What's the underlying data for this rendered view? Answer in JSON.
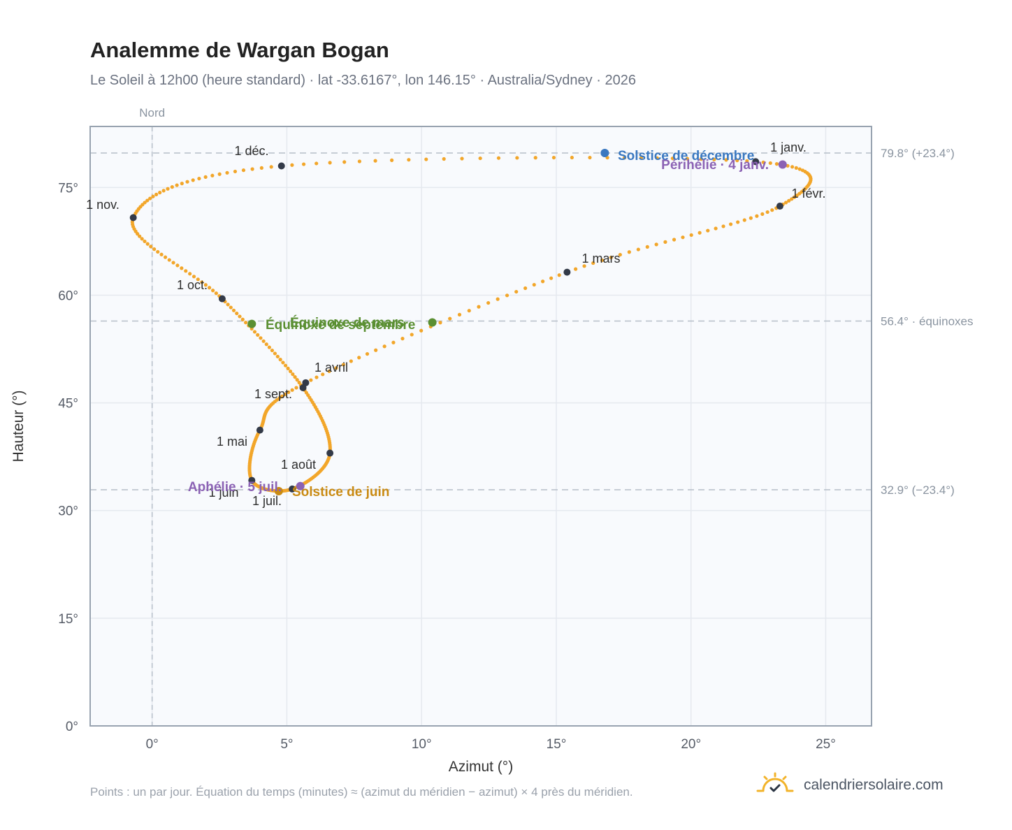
{
  "header": {
    "title": "Analemme de Wargan Bogan",
    "subtitle": "Le Soleil à 12h00 (heure standard) · lat -33.6167°, lon 146.15° · Australia/Sydney · 2026"
  },
  "footer": {
    "note": "Points : un par jour. Équation du temps (minutes) ≈ (azimut du méridien − azimut) × 4 près du méridien.",
    "brand": "calendriersolaire.com",
    "brand_icon": "sun-logo-icon"
  },
  "colors": {
    "curve": "#f2a62a",
    "month_dot": "#333a48",
    "equinox": "#5a8f32",
    "solstice_dec": "#3a78c0",
    "solstice_jun": "#c98a12",
    "apsis": "#8b62b4",
    "grid": "#e5e9ef",
    "plot_bg": "#f8fafd",
    "ref_line": "#b5bec8"
  },
  "chart_data": {
    "type": "scatter",
    "title": "Analemme de Wargan Bogan",
    "xlabel": "Azimut (°)",
    "ylabel": "Hauteur (°)",
    "xlim": [
      -2.3,
      26.7
    ],
    "ylim": [
      0,
      83.5
    ],
    "x_ticks": [
      0,
      5,
      10,
      15,
      20,
      25
    ],
    "x_tick_labels": [
      "0°",
      "5°",
      "10°",
      "15°",
      "20°",
      "25°"
    ],
    "y_ticks": [
      0,
      15,
      30,
      45,
      60,
      75
    ],
    "y_tick_labels": [
      "0°",
      "15°",
      "30°",
      "45°",
      "60°",
      "75°"
    ],
    "grid": true,
    "north_line": {
      "x": 0,
      "label": "Nord"
    },
    "reference_lines": [
      {
        "y": 79.8,
        "label": "79.8° (+23.4°)"
      },
      {
        "y": 56.4,
        "label": "56.4° · équinoxes"
      },
      {
        "y": 32.9,
        "label": "32.9° (−23.4°)"
      }
    ],
    "month_points": [
      {
        "label": "1 janv.",
        "x": 22.4,
        "y": 78.6,
        "day": 0
      },
      {
        "label": "1 févr.",
        "x": 23.3,
        "y": 72.4,
        "day": 31
      },
      {
        "label": "1 mars",
        "x": 15.4,
        "y": 63.2,
        "day": 59
      },
      {
        "label": "1 avril",
        "x": 5.7,
        "y": 47.8,
        "day": 90
      },
      {
        "label": "1 mai",
        "x": 4.0,
        "y": 41.2,
        "day": 120
      },
      {
        "label": "1 juin",
        "x": 3.7,
        "y": 34.2,
        "day": 151
      },
      {
        "label": "1 juil.",
        "x": 5.2,
        "y": 33.0,
        "day": 181
      },
      {
        "label": "1 août",
        "x": 6.6,
        "y": 38.0,
        "day": 212
      },
      {
        "label": "1 sept.",
        "x": 5.6,
        "y": 47.1,
        "day": 243
      },
      {
        "label": "1 oct.",
        "x": 2.6,
        "y": 59.5,
        "day": 273
      },
      {
        "label": "1 nov.",
        "x": -0.7,
        "y": 70.8,
        "day": 304
      },
      {
        "label": "1 déc.",
        "x": 4.8,
        "y": 78.0,
        "day": 334
      },
      {
        "label": "",
        "x": 22.4,
        "y": 78.6,
        "day": 365
      }
    ],
    "events": [
      {
        "label": "Solstice de décembre",
        "x": 16.8,
        "y": 79.8,
        "color": "#3a78c0"
      },
      {
        "label": "Périhélie · 4 janv.",
        "x": 23.4,
        "y": 78.2,
        "color": "#8b62b4"
      },
      {
        "label": "Équinoxe de mars",
        "x": 10.4,
        "y": 56.2,
        "color": "#5a8f32"
      },
      {
        "label": "Équinoxe de septembre",
        "x": 3.7,
        "y": 56.0,
        "color": "#5a8f32"
      },
      {
        "label": "Solstice de juin",
        "x": 4.7,
        "y": 32.7,
        "color": "#c98a12"
      },
      {
        "label": "Aphélie · 5 juil.",
        "x": 5.5,
        "y": 33.4,
        "color": "#8b62b4"
      }
    ]
  }
}
